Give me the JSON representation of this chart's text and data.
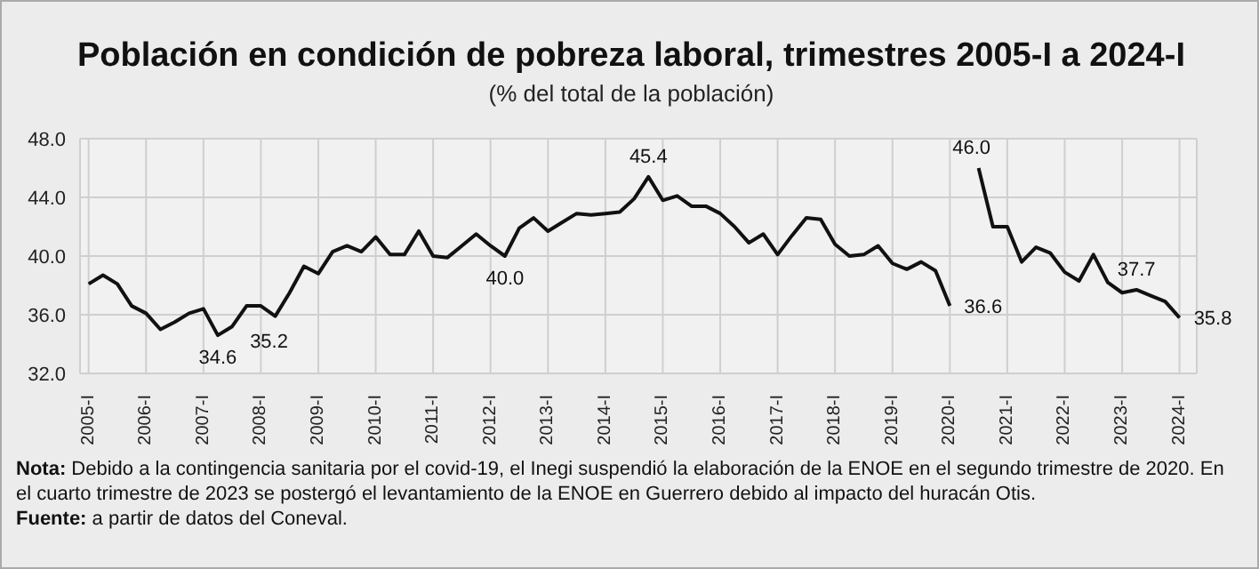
{
  "chart_data": {
    "type": "line",
    "title": "Población en condición de pobreza laboral, trimestres 2005-I a 2024-I",
    "subtitle": "(% del total de la población)",
    "categories": [
      "2005-I",
      null,
      null,
      null,
      "2006-I",
      null,
      null,
      null,
      "2007-I",
      null,
      null,
      null,
      "2008-I",
      null,
      null,
      null,
      "2009-I",
      null,
      null,
      null,
      "2010-I",
      null,
      null,
      null,
      "2011-I",
      null,
      null,
      null,
      "2012-I",
      null,
      null,
      null,
      "2013-I",
      null,
      null,
      null,
      "2014-I",
      null,
      null,
      null,
      "2015-I",
      null,
      null,
      null,
      "2016-I",
      null,
      null,
      null,
      "2017-I",
      null,
      null,
      null,
      "2018-I",
      null,
      null,
      null,
      "2019-I",
      null,
      null,
      null,
      "2020-I",
      null,
      null,
      null,
      "2021-I",
      null,
      null,
      null,
      "2022-I",
      null,
      null,
      null,
      "2023-I",
      null,
      null,
      null,
      "2024-I"
    ],
    "series": [
      {
        "color": "#111111",
        "values": [
          38.1,
          38.7,
          38.1,
          36.6,
          36.1,
          35.0,
          35.5,
          36.1,
          36.4,
          34.6,
          35.2,
          36.6,
          36.6,
          35.9,
          37.5,
          39.3,
          38.8,
          40.3,
          40.7,
          40.3,
          41.3,
          40.1,
          40.1,
          41.7,
          40.0,
          39.9,
          40.7,
          41.5,
          40.7,
          40.0,
          41.9,
          42.6,
          41.7,
          42.3,
          42.9,
          42.8,
          42.9,
          43.0,
          43.9,
          45.4,
          43.8,
          44.1,
          43.4,
          43.4,
          42.9,
          42.0,
          40.9,
          41.5,
          40.1,
          41.4,
          42.6,
          42.5,
          40.8,
          40.0,
          40.1,
          40.7,
          39.5,
          39.1,
          39.6,
          39.0,
          36.6,
          null,
          46.0,
          42.0,
          42.0,
          39.6,
          40.6,
          40.2,
          38.9,
          38.3,
          40.1,
          38.2,
          37.5,
          37.7,
          37.3,
          36.9,
          35.8
        ],
        "value_labels": [
          null,
          null,
          null,
          null,
          null,
          null,
          null,
          null,
          null,
          "34.6",
          "35.2",
          null,
          null,
          null,
          null,
          null,
          null,
          null,
          null,
          null,
          null,
          null,
          null,
          null,
          null,
          null,
          null,
          null,
          null,
          "40.0",
          null,
          null,
          null,
          null,
          null,
          null,
          null,
          null,
          null,
          "45.4",
          null,
          null,
          null,
          null,
          null,
          null,
          null,
          null,
          null,
          null,
          null,
          null,
          null,
          null,
          null,
          null,
          null,
          null,
          null,
          null,
          "36.6",
          null,
          "46.0",
          null,
          null,
          null,
          null,
          null,
          null,
          null,
          null,
          null,
          null,
          "37.7",
          null,
          null,
          "35.8"
        ]
      }
    ],
    "ylim": [
      32,
      48
    ],
    "yticks": [
      {
        "value": 32,
        "label": "32.0"
      },
      {
        "value": 36,
        "label": "36.0"
      },
      {
        "value": 40,
        "label": "40.0"
      },
      {
        "value": 44,
        "label": "44.0"
      },
      {
        "value": 48,
        "label": "48.0"
      }
    ],
    "grid": true,
    "legend": false,
    "marker": "none",
    "line_style": "solid",
    "annotations": [
      "Nota: Debido a la contingencia sanitaria por el covid-19, el Inegi suspendió la elaboración de la ENOE en el segundo trimestre de 2020. En el cuarto trimestre de 2023 se postergó el levantamiento de la ENOE en Guerrero debido al impacto del huracán Otis.",
      "Fuente: a partir de datos del Coneval."
    ]
  }
}
